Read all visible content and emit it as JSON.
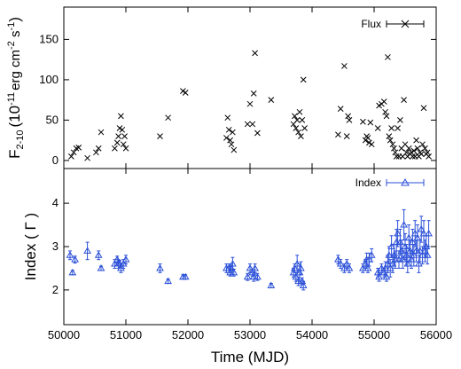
{
  "chart_data": [
    {
      "type": "scatter",
      "panel": "top",
      "ylabel": {
        "main": "F",
        "sub": "2-10",
        "text": "(10",
        "sup1": "-11",
        "mid": "erg cm",
        "sup2": "-2",
        "mid2": " s",
        "sup3": "-1",
        "end": ")"
      },
      "ylim": [
        -10,
        190
      ],
      "yticks": [
        0,
        50,
        100,
        150
      ],
      "xlim": [
        50000,
        56000
      ],
      "legend": "top-right",
      "series": [
        {
          "name": "Flux",
          "color": "#000000",
          "marker": "x",
          "x": [
            50120,
            50160,
            50200,
            50240,
            50380,
            50520,
            50560,
            50600,
            50820,
            50860,
            50880,
            50900,
            50920,
            50940,
            50960,
            50980,
            51000,
            51550,
            51680,
            51920,
            51960,
            52620,
            52640,
            52660,
            52680,
            52700,
            52720,
            52740,
            52960,
            53000,
            53040,
            53060,
            53080,
            53120,
            53340,
            53700,
            53720,
            53740,
            53760,
            53780,
            53800,
            53820,
            53840,
            53860,
            53880,
            54420,
            54460,
            54520,
            54560,
            54580,
            54600,
            54820,
            54860,
            54880,
            54900,
            54920,
            54940,
            54960,
            55060,
            55080,
            55120,
            55160,
            55180,
            55200,
            55220,
            55240,
            55260,
            55280,
            55300,
            55320,
            55340,
            55360,
            55380,
            55400,
            55420,
            55440,
            55460,
            55480,
            55500,
            55520,
            55540,
            55560,
            55580,
            55600,
            55620,
            55640,
            55660,
            55680,
            55700,
            55720,
            55740,
            55760,
            55780,
            55800,
            55820,
            55840,
            55860,
            55880
          ],
          "y": [
            5,
            10,
            15,
            16,
            3,
            10,
            15,
            35,
            15,
            22,
            30,
            40,
            55,
            38,
            20,
            30,
            15,
            30,
            53,
            86,
            84,
            28,
            53,
            38,
            25,
            20,
            35,
            13,
            45,
            70,
            45,
            83,
            133,
            34,
            75,
            45,
            55,
            40,
            50,
            35,
            60,
            30,
            50,
            100,
            40,
            32,
            64,
            117,
            30,
            55,
            50,
            48,
            25,
            30,
            28,
            22,
            47,
            20,
            40,
            68,
            70,
            73,
            60,
            55,
            128,
            30,
            25,
            40,
            20,
            15,
            10,
            5,
            40,
            5,
            50,
            15,
            5,
            75,
            20,
            10,
            5,
            15,
            8,
            10,
            5,
            12,
            5,
            25,
            15,
            5,
            10,
            8,
            20,
            65,
            15,
            8,
            10,
            5
          ]
        }
      ]
    },
    {
      "type": "scatter",
      "panel": "bottom",
      "ylabel": "Index ( Γ )",
      "xlabel": "Time (MJD)",
      "ylim": [
        1.2,
        4.8
      ],
      "yticks": [
        2,
        3,
        4
      ],
      "xlim": [
        50000,
        56000
      ],
      "xticks": [
        50000,
        51000,
        52000,
        53000,
        54000,
        55000,
        56000
      ],
      "legend": "top-right",
      "series": [
        {
          "name": "Index",
          "color": "#2a4fd8",
          "marker": "triangle",
          "x": [
            50100,
            50140,
            50180,
            50380,
            50560,
            50600,
            50820,
            50860,
            50880,
            50900,
            50920,
            50960,
            51000,
            51550,
            51680,
            51920,
            51960,
            52620,
            52660,
            52680,
            52700,
            52720,
            52740,
            52960,
            53000,
            53040,
            53060,
            53080,
            53120,
            53340,
            53700,
            53720,
            53740,
            53760,
            53780,
            53800,
            53820,
            53840,
            53860,
            54420,
            54460,
            54520,
            54560,
            54600,
            54820,
            54860,
            54880,
            54900,
            54920,
            54960,
            55060,
            55080,
            55120,
            55160,
            55180,
            55200,
            55220,
            55240,
            55260,
            55280,
            55300,
            55320,
            55340,
            55360,
            55380,
            55400,
            55420,
            55440,
            55460,
            55480,
            55500,
            55520,
            55540,
            55560,
            55580,
            55600,
            55620,
            55640,
            55660,
            55680,
            55700,
            55720,
            55740,
            55760,
            55780,
            55800,
            55820,
            55840,
            55860,
            55880
          ],
          "y": [
            2.8,
            2.4,
            2.7,
            2.9,
            2.8,
            2.5,
            2.6,
            2.7,
            2.6,
            2.6,
            2.5,
            2.6,
            2.7,
            2.5,
            2.2,
            2.3,
            2.3,
            2.5,
            2.5,
            2.4,
            2.5,
            2.6,
            2.4,
            2.3,
            2.5,
            2.4,
            2.3,
            2.5,
            2.3,
            2.1,
            2.4,
            2.5,
            2.3,
            2.6,
            2.2,
            2.4,
            2.5,
            2.2,
            2.1,
            2.7,
            2.6,
            2.5,
            2.6,
            2.5,
            2.5,
            2.6,
            2.7,
            2.5,
            2.7,
            2.8,
            2.4,
            2.3,
            2.5,
            2.4,
            2.5,
            2.3,
            2.6,
            2.8,
            2.5,
            3.0,
            2.6,
            2.8,
            2.7,
            3.1,
            3.3,
            2.7,
            3.1,
            2.9,
            2.7,
            3.5,
            3.0,
            2.8,
            2.6,
            3.2,
            2.9,
            2.7,
            3.1,
            2.8,
            3.3,
            2.9,
            3.2,
            2.6,
            2.9,
            3.4,
            2.8,
            3.3,
            2.9,
            3.0,
            2.8,
            3.3
          ],
          "yerr": [
            0.1,
            0.05,
            0.08,
            0.2,
            0.1,
            0.05,
            0.1,
            0.08,
            0.1,
            0.08,
            0.1,
            0.1,
            0.1,
            0.1,
            0.05,
            0.05,
            0.05,
            0.1,
            0.1,
            0.08,
            0.1,
            0.15,
            0.08,
            0.08,
            0.1,
            0.08,
            0.1,
            0.1,
            0.08,
            0.05,
            0.1,
            0.1,
            0.1,
            0.2,
            0.1,
            0.2,
            0.15,
            0.08,
            0.1,
            0.1,
            0.1,
            0.1,
            0.1,
            0.1,
            0.1,
            0.1,
            0.15,
            0.1,
            0.15,
            0.15,
            0.1,
            0.1,
            0.1,
            0.1,
            0.15,
            0.1,
            0.2,
            0.2,
            0.2,
            0.25,
            0.2,
            0.25,
            0.2,
            0.3,
            0.3,
            0.2,
            0.3,
            0.25,
            0.2,
            0.35,
            0.3,
            0.25,
            0.2,
            0.3,
            0.25,
            0.2,
            0.3,
            0.25,
            0.3,
            0.25,
            0.3,
            0.2,
            0.25,
            0.3,
            0.2,
            0.3,
            0.25,
            0.25,
            0.2,
            0.3
          ]
        }
      ]
    }
  ]
}
